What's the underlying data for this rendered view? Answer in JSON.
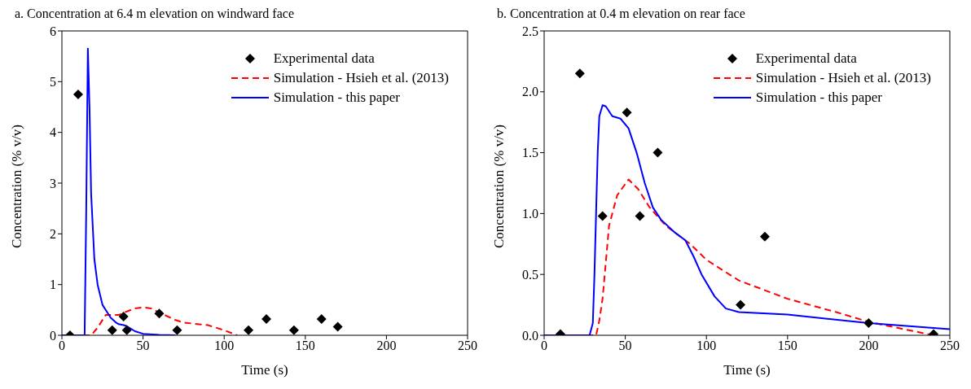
{
  "chart_data": [
    {
      "type": "line",
      "title": "a. Concentration at 6.4 m elevation on windward face",
      "xlabel": "Time (s)",
      "ylabel": "Concentration (% v/v)",
      "xlim": [
        0,
        250
      ],
      "xticks": [
        0,
        50,
        100,
        150,
        200,
        250
      ],
      "ylim": [
        0,
        6
      ],
      "yticks": [
        0,
        1,
        2,
        3,
        4,
        5,
        6
      ],
      "grid": false,
      "legend": "top right",
      "series": [
        {
          "name": "Experimental data",
          "type": "scatter",
          "marker": "diamond",
          "color": "#000000",
          "x": [
            5,
            10,
            31,
            38,
            40,
            60,
            71,
            115,
            126,
            143,
            160,
            170
          ],
          "values": [
            0,
            4.75,
            0.1,
            0.37,
            0.1,
            0.43,
            0.1,
            0.1,
            0.32,
            0.1,
            0.32,
            0.17
          ]
        },
        {
          "name": "Simulation - Hsieh et al. (2013)",
          "type": "line",
          "line_style": "dashed",
          "color": "#ff0000",
          "x": [
            0,
            18,
            22,
            27,
            35,
            40,
            45,
            50,
            55,
            60,
            70,
            75,
            90,
            100,
            108
          ],
          "values": [
            0,
            0,
            0.15,
            0.4,
            0.4,
            0.47,
            0.53,
            0.55,
            0.53,
            0.45,
            0.3,
            0.25,
            0.2,
            0.1,
            0
          ]
        },
        {
          "name": "Simulation - this paper",
          "type": "line",
          "line_style": "solid",
          "color": "#0000ff",
          "x": [
            0,
            14,
            15,
            16,
            17,
            18,
            20,
            22,
            25,
            28,
            30,
            33,
            35,
            38,
            40,
            45,
            50,
            60,
            70
          ],
          "values": [
            0,
            0,
            2.5,
            5.65,
            4.5,
            2.8,
            1.5,
            1,
            0.6,
            0.45,
            0.35,
            0.26,
            0.22,
            0.2,
            0.18,
            0.08,
            0.03,
            0.01,
            0
          ]
        }
      ]
    },
    {
      "type": "line",
      "title": "b. Concentration at 0.4 m elevation on rear face",
      "xlabel": "Time (s)",
      "ylabel": "Concentration (% v/v)",
      "xlim": [
        0,
        250
      ],
      "xticks": [
        0,
        50,
        100,
        150,
        200,
        250
      ],
      "ylim": [
        0,
        2.5
      ],
      "yticks": [
        {
          "value": 0,
          "label": "0.0"
        },
        {
          "value": 0.5,
          "label": "0.5"
        },
        {
          "value": 1,
          "label": "1.0"
        },
        {
          "value": 1.5,
          "label": "1.5"
        },
        {
          "value": 2,
          "label": "2.0"
        },
        {
          "value": 2.5,
          "label": "2.5"
        }
      ],
      "grid": false,
      "legend": "top right",
      "series": [
        {
          "name": "Experimental data",
          "type": "scatter",
          "marker": "diamond",
          "color": "#000000",
          "x": [
            10,
            22,
            36,
            51,
            59,
            70,
            121,
            136,
            200,
            240
          ],
          "values": [
            0.01,
            2.15,
            0.98,
            1.83,
            0.98,
            1.5,
            0.25,
            0.81,
            0.1,
            0.01
          ]
        },
        {
          "name": "Simulation - Hsieh et al. (2013)",
          "type": "line",
          "line_style": "dashed",
          "color": "#ff0000",
          "x": [
            0,
            32,
            34,
            36,
            38,
            40,
            45,
            52,
            58,
            65,
            75,
            90,
            100,
            120,
            150,
            180,
            200,
            240
          ],
          "values": [
            0,
            0,
            0.12,
            0.3,
            0.6,
            0.9,
            1.15,
            1.28,
            1.2,
            1.05,
            0.9,
            0.75,
            0.62,
            0.45,
            0.3,
            0.19,
            0.11,
            0
          ]
        },
        {
          "name": "Simulation - this paper",
          "type": "line",
          "line_style": "solid",
          "color": "#0000ff",
          "x": [
            0,
            28,
            30,
            31,
            32,
            33,
            34,
            36,
            38,
            42,
            47,
            52,
            57,
            62,
            67,
            72,
            80,
            87,
            92,
            97,
            105,
            112,
            120,
            150,
            200,
            250
          ],
          "values": [
            0,
            0,
            0.1,
            0.5,
            1,
            1.5,
            1.8,
            1.89,
            1.88,
            1.8,
            1.78,
            1.7,
            1.5,
            1.25,
            1.05,
            0.95,
            0.85,
            0.78,
            0.65,
            0.5,
            0.32,
            0.22,
            0.19,
            0.17,
            0.1,
            0.05
          ]
        }
      ]
    }
  ]
}
